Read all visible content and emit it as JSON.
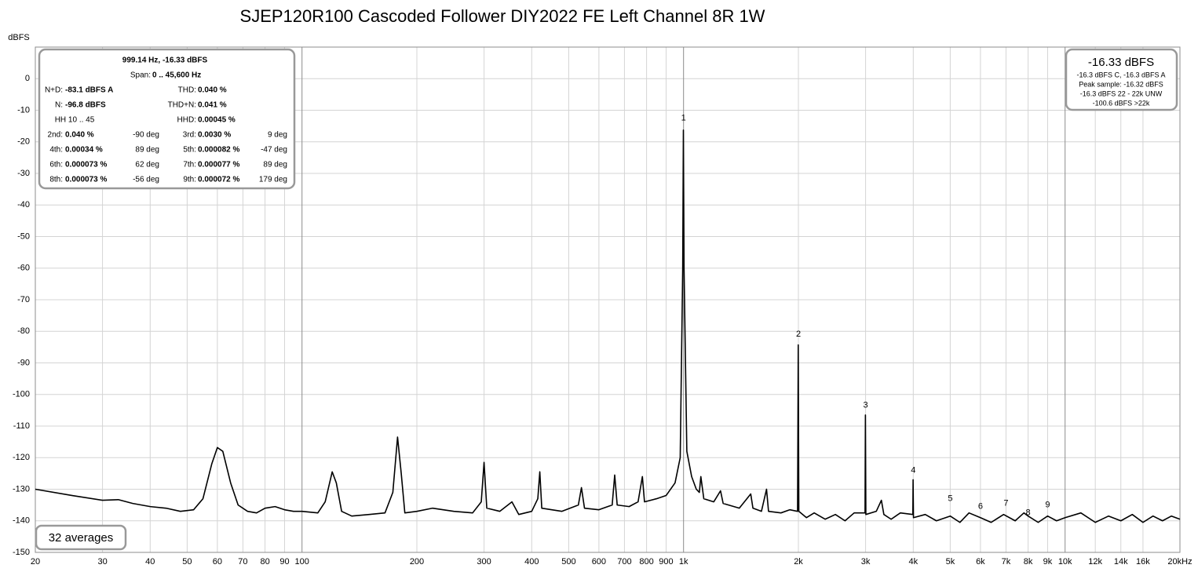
{
  "chart_data": {
    "type": "line",
    "title": "SJEP120R100 Cascoded Follower DIY2022 FE Left Channel 8R 1W",
    "y_label": "dBFS",
    "xscale": "log",
    "grid": true,
    "xlim": [
      20,
      20000
    ],
    "ylim": [
      -150,
      10
    ],
    "xticks": [
      20,
      30,
      40,
      50,
      60,
      70,
      80,
      90,
      100,
      200,
      300,
      400,
      500,
      600,
      700,
      800,
      900,
      {
        "value": 1000,
        "label": "1k"
      },
      {
        "value": 2000,
        "label": "2k"
      },
      {
        "value": 3000,
        "label": "3k"
      },
      {
        "value": 4000,
        "label": "4k"
      },
      {
        "value": 5000,
        "label": "5k"
      },
      {
        "value": 6000,
        "label": "6k"
      },
      {
        "value": 7000,
        "label": "7k"
      },
      {
        "value": 8000,
        "label": "8k"
      },
      {
        "value": 9000,
        "label": "9k"
      },
      {
        "value": 10000,
        "label": "10k"
      },
      {
        "value": 12000,
        "label": "12k"
      },
      {
        "value": 14000,
        "label": "14k"
      },
      {
        "value": 16000,
        "label": "16k"
      },
      {
        "value": 20000,
        "label": "20kHz"
      }
    ],
    "yticks": [
      0,
      -10,
      -20,
      -30,
      -40,
      -50,
      -60,
      -70,
      -80,
      -90,
      -100,
      -110,
      -120,
      -130,
      -140,
      -150
    ],
    "series": [
      {
        "color": "#000000",
        "x": [
          20,
          25,
          30,
          33,
          36,
          40,
          44,
          48,
          52,
          55,
          58,
          60,
          62,
          65,
          68,
          72,
          76,
          80,
          85,
          90,
          95,
          100,
          110,
          115,
          120,
          123,
          127,
          135,
          150,
          165,
          173,
          178,
          182,
          186,
          200,
          220,
          250,
          280,
          295,
          300,
          305,
          330,
          355,
          370,
          400,
          415,
          420,
          425,
          480,
          530,
          540,
          550,
          600,
          650,
          660,
          670,
          720,
          760,
          780,
          790,
          850,
          900,
          950,
          980,
          995,
          999,
          1003,
          1020,
          1050,
          1080,
          1100,
          1110,
          1130,
          1200,
          1250,
          1270,
          1400,
          1500,
          1520,
          1600,
          1650,
          1670,
          1800,
          1900,
          1990,
          1998,
          2005,
          2100,
          2200,
          2350,
          2500,
          2650,
          2800,
          2990,
          2997,
          3005,
          3200,
          3300,
          3350,
          3500,
          3700,
          3990,
          3996,
          4005,
          4300,
          4600,
          5000,
          5300,
          5600,
          6000,
          6400,
          6900,
          7400,
          7800,
          8000,
          8500,
          9000,
          9500,
          10000,
          11000,
          12000,
          13000,
          14000,
          15000,
          16000,
          17000,
          18000,
          19000,
          20000
        ],
        "values": [
          -130,
          -132,
          -133.5,
          -133.3,
          -134.5,
          -135.5,
          -136,
          -137,
          -136.5,
          -133,
          -122,
          -116.8,
          -118,
          -128,
          -135,
          -137,
          -137.5,
          -136,
          -135.5,
          -136.5,
          -137,
          -137,
          -137.5,
          -134,
          -124.5,
          -128,
          -137,
          -138.5,
          -138,
          -137.5,
          -131,
          -113.5,
          -125,
          -137.5,
          -137,
          -136,
          -137,
          -137.5,
          -134,
          -121.5,
          -136,
          -137,
          -134,
          -138,
          -137,
          -133,
          -124.5,
          -136,
          -137,
          -135,
          -129.5,
          -136,
          -136.5,
          -135,
          -125.5,
          -135,
          -135.5,
          -134,
          -126,
          -134,
          -133,
          -132,
          -128,
          -120,
          -60,
          -16.3,
          -60,
          -118,
          -126,
          -130,
          -131,
          -126,
          -133,
          -134,
          -130.5,
          -134.5,
          -136,
          -131.5,
          -136,
          -137,
          -130,
          -137,
          -137.5,
          -136.5,
          -137,
          -84.3,
          -137,
          -139,
          -137.5,
          -139.5,
          -138,
          -140,
          -137.5,
          -137.5,
          -106.5,
          -138,
          -137,
          -133.5,
          -138,
          -139.5,
          -137.5,
          -138,
          -127,
          -139,
          -138,
          -140,
          -138.5,
          -140.5,
          -137.5,
          -139,
          -140.5,
          -138,
          -140,
          -137.5,
          -138.5,
          -140.5,
          -138.5,
          -140,
          -139,
          -137.5,
          -140.5,
          -138.5,
          -140,
          -138,
          -140.5,
          -138.5,
          -140,
          -138.5,
          -139.5
        ]
      }
    ],
    "annotations": [
      {
        "text": "1",
        "x": 1000,
        "y": -12.5
      },
      {
        "text": "2",
        "x": 2000,
        "y": -81
      },
      {
        "text": "3",
        "x": 3000,
        "y": -103.5
      },
      {
        "text": "4",
        "x": 4000,
        "y": -124
      },
      {
        "text": "5",
        "x": 5000,
        "y": -133
      },
      {
        "text": "6",
        "x": 6000,
        "y": -135.5
      },
      {
        "text": "7",
        "x": 7000,
        "y": -134.5
      },
      {
        "text": "8",
        "x": 8000,
        "y": -137.5
      },
      {
        "text": "9",
        "x": 9000,
        "y": -135
      }
    ]
  },
  "info_panel": {
    "header": "999.14 Hz, -16.33 dBFS",
    "span_label": "Span:",
    "span": "0 .. 45,600 Hz",
    "rows": [
      [
        {
          "label": "N+D:",
          "value": "-83.1 dBFS A"
        },
        {
          "label": "THD:",
          "value": "0.040 %"
        }
      ],
      [
        {
          "label": "N:",
          "value": "-96.8 dBFS"
        },
        {
          "label": "THD+N:",
          "value": "0.041 %"
        }
      ],
      [
        {
          "label": "HH 10 .. 45"
        },
        {
          "label": "HHD:",
          "value": "0.00045 %"
        }
      ],
      [
        {
          "label": "2nd:",
          "value": "0.040 %",
          "phase": "-90 deg"
        },
        {
          "label": "3rd:",
          "value": "0.0030 %",
          "phase": "9 deg"
        }
      ],
      [
        {
          "label": "4th:",
          "value": "0.00034 %",
          "phase": "89 deg"
        },
        {
          "label": "5th:",
          "value": "0.000082 %",
          "phase": "-47 deg"
        }
      ],
      [
        {
          "label": "6th:",
          "value": "0.000073 %",
          "phase": "62 deg"
        },
        {
          "label": "7th:",
          "value": "0.000077 %",
          "phase": "89 deg"
        }
      ],
      [
        {
          "label": "8th:",
          "value": "0.000073 %",
          "phase": "-56 deg"
        },
        {
          "label": "9th:",
          "value": "0.000072 %",
          "phase": "179 deg"
        }
      ]
    ]
  },
  "level_panel": {
    "level": "-16.33 dBFS",
    "lines": [
      "-16.3 dBFS C, -16.3 dBFS A",
      "Peak sample: -16.32 dBFS",
      "-16.3 dBFS 22 - 22k UNW",
      "-100.6 dBFS >22k"
    ]
  },
  "averages": "32 averages"
}
